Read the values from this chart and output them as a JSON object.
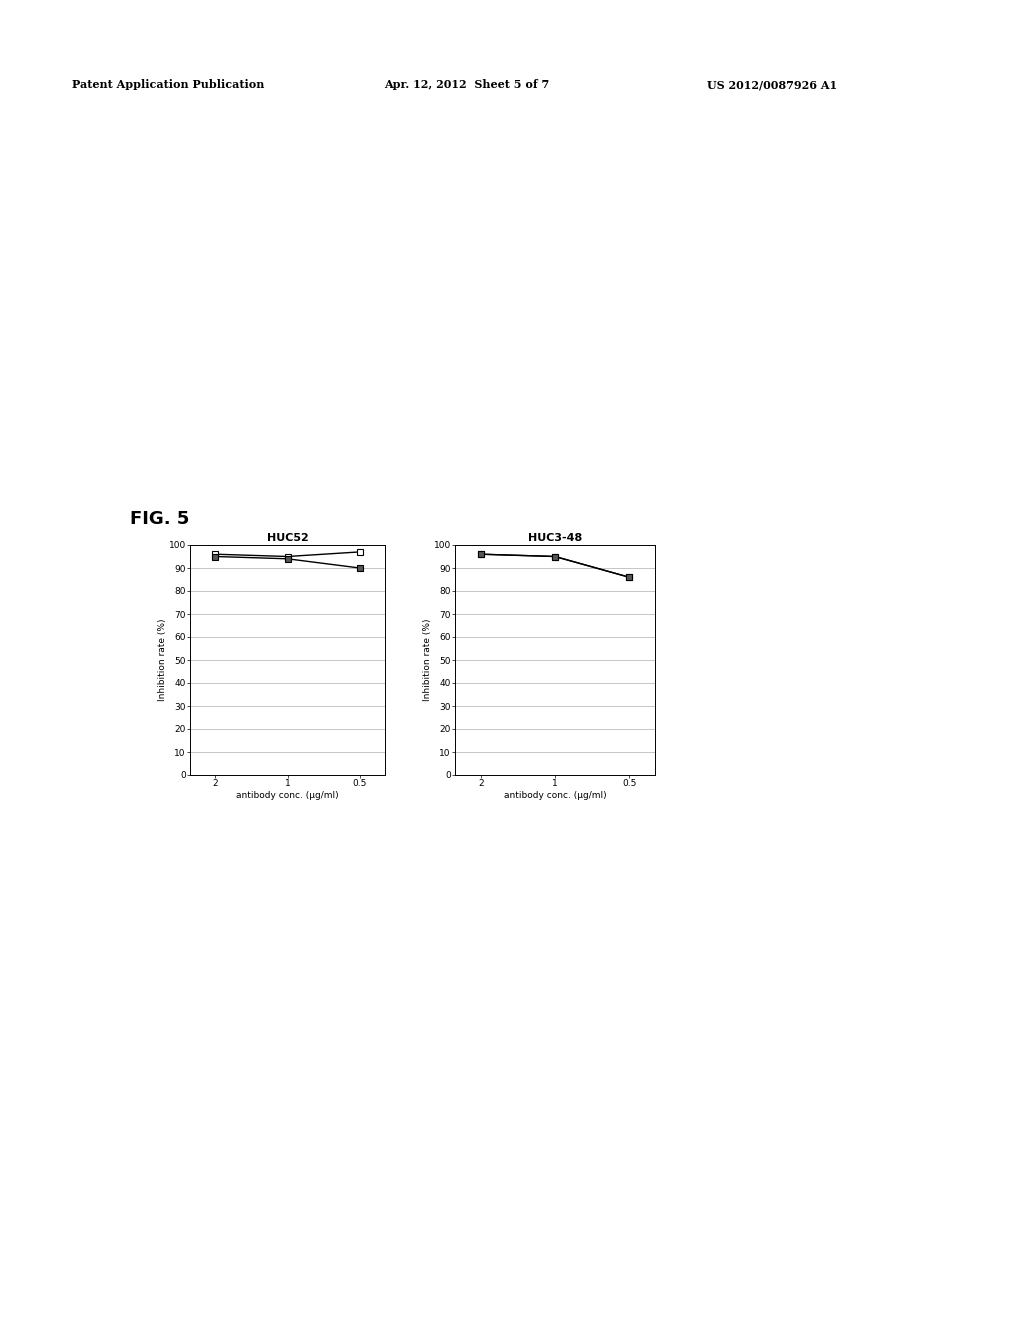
{
  "fig_label": "FIG. 5",
  "chart1_title": "HUC52",
  "chart2_title": "HUC3-48",
  "xlabel": "antibody conc. (μg/ml)",
  "ylabel": "Inhibition rate (%)",
  "x_labels": [
    "2",
    "1",
    "0.5"
  ],
  "ylim": [
    0,
    100
  ],
  "yticks": [
    0,
    10,
    20,
    30,
    40,
    50,
    60,
    70,
    80,
    90,
    100
  ],
  "chart1_line1": [
    96,
    95,
    97
  ],
  "chart1_line2": [
    95,
    94,
    90
  ],
  "chart2_line1": [
    96,
    95,
    86
  ],
  "chart2_line2": [
    96,
    95,
    86
  ],
  "background_color": "#ffffff",
  "header_text1": "Patent Application Publication",
  "header_text2": "Apr. 12, 2012  Sheet 5 of 7",
  "header_text3": "US 2012/0087926 A1",
  "line1_color": "#000000",
  "line2_color": "#000000",
  "grid_color": "#999999",
  "axis_line_color": "#000000",
  "font_size_title": 8,
  "font_size_axis": 6.5,
  "font_size_tick": 6.5,
  "font_size_header": 8,
  "fig_label_fontsize": 13
}
